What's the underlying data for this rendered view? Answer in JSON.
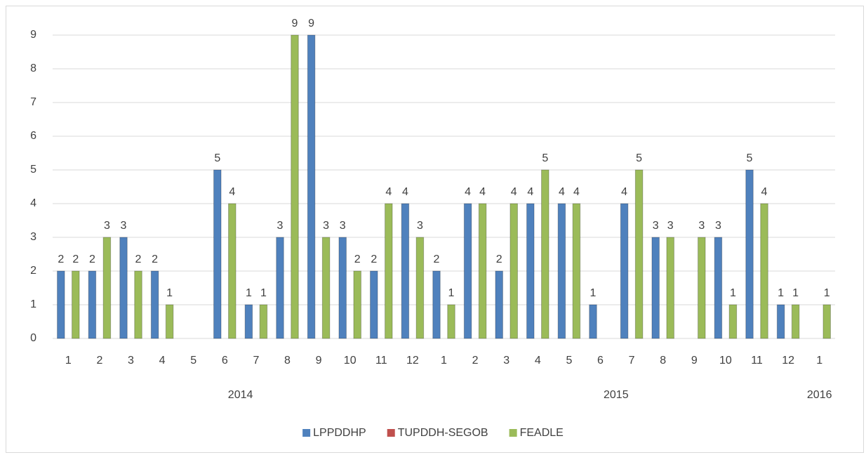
{
  "chart_data": {
    "type": "bar",
    "groups": [
      {
        "label": "2014",
        "categories": [
          "1",
          "2",
          "3",
          "4",
          "5",
          "6",
          "7",
          "8",
          "9",
          "10",
          "11",
          "12"
        ]
      },
      {
        "label": "2015",
        "categories": [
          "1",
          "2",
          "3",
          "4",
          "5",
          "6",
          "7",
          "8",
          "9",
          "10",
          "11",
          "12"
        ]
      },
      {
        "label": "2016",
        "categories": [
          "1"
        ]
      }
    ],
    "series": [
      {
        "name": "LPPDDHP",
        "color": "#4f81bd",
        "values": [
          2,
          2,
          3,
          2,
          null,
          5,
          1,
          3,
          9,
          3,
          2,
          4,
          2,
          4,
          2,
          4,
          4,
          1,
          4,
          3,
          null,
          3,
          5,
          1,
          null
        ]
      },
      {
        "name": "TUPDDH-SEGOB",
        "color": "#c0504d",
        "values": [
          null,
          null,
          null,
          null,
          null,
          null,
          null,
          null,
          null,
          null,
          null,
          null,
          null,
          null,
          null,
          null,
          null,
          null,
          null,
          null,
          null,
          null,
          null,
          null,
          null
        ]
      },
      {
        "name": "FEADLE",
        "color": "#9bbb59",
        "values": [
          2,
          3,
          2,
          1,
          null,
          4,
          1,
          9,
          3,
          2,
          4,
          3,
          1,
          4,
          4,
          5,
          4,
          null,
          5,
          3,
          3,
          1,
          4,
          1,
          1
        ]
      }
    ],
    "ylim": [
      0,
      9
    ],
    "yticks": [
      0,
      1,
      2,
      3,
      4,
      5,
      6,
      7,
      8,
      9
    ],
    "grid": true,
    "legend": "bottom"
  }
}
